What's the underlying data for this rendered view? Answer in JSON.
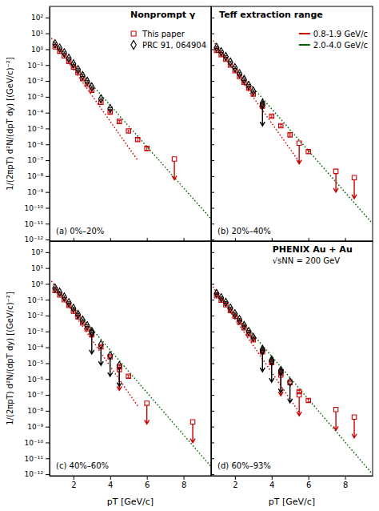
{
  "chart_data": [
    {
      "type": "scatter",
      "log": "y",
      "grid": false,
      "legend": "upper right",
      "tick_labels": "y",
      "xlim": [
        0.7,
        9.5
      ],
      "ylim": [
        8e-13,
        500.0
      ],
      "xticks": [
        2,
        4,
        6,
        8
      ],
      "yticks": [
        {
          "value": 1e-12,
          "label": "10⁻¹²"
        },
        {
          "value": 1e-11,
          "label": "10⁻¹¹"
        },
        {
          "value": 1e-10,
          "label": "10⁻¹⁰"
        },
        {
          "value": 1e-09,
          "label": "10⁻⁹"
        },
        {
          "value": 1e-08,
          "label": "10⁻⁸"
        },
        {
          "value": 1e-07,
          "label": "10⁻⁷"
        },
        {
          "value": 1e-06,
          "label": "10⁻⁶"
        },
        {
          "value": 1e-05,
          "label": "10⁻⁵"
        },
        {
          "value": 0.0001,
          "label": "10⁻⁴"
        },
        {
          "value": 0.001,
          "label": "10⁻³"
        },
        {
          "value": 0.01,
          "label": "10⁻²"
        },
        {
          "value": 0.1,
          "label": "10⁻¹"
        },
        {
          "value": 1,
          "label": "10⁰"
        },
        {
          "value": 10,
          "label": "10¹"
        },
        {
          "value": 100,
          "label": "10²"
        }
      ],
      "ylabel": "1/(2πpT) d²N/(dpT dy) [(GeV/c)⁻²]",
      "annotations": [
        "(a) 0%–20%",
        "Nonprompt γ"
      ],
      "series": [
        {
          "type": "line",
          "line_style": "dotted",
          "color": "#cc0000",
          "x": [
            0.8,
            5.5
          ],
          "values": [
            5.0,
            1e-07
          ]
        },
        {
          "type": "line",
          "line_style": "dotted",
          "color": "#006600",
          "x": [
            2.0,
            9.5
          ],
          "values": [
            0.12,
            2e-11
          ]
        },
        {
          "name": "This paper",
          "type": "scatter",
          "marker": "square",
          "color": "#cc0000",
          "x": [
            1.0,
            1.25,
            1.5,
            1.75,
            2.0,
            2.25,
            2.5,
            2.75,
            3.0,
            3.5,
            4.0,
            4.5,
            5.0,
            5.5,
            6.0
          ],
          "values": [
            1.4,
            0.75,
            0.38,
            0.17,
            0.075,
            0.033,
            0.014,
            0.006,
            0.0026,
            0.00045,
            0.00011,
            2.8e-05,
            7e-06,
            2e-06,
            5.5e-07
          ],
          "error_lo": [
            0.18,
            0.09,
            0.045,
            0.02,
            0.009,
            0.004,
            0.0018,
            0.0008,
            0.0004,
            6e-05,
            1.5e-05,
            4e-06,
            1.2e-06,
            4e-07,
            1.2e-07
          ],
          "error_hi": [
            0.18,
            0.09,
            0.045,
            0.02,
            0.009,
            0.004,
            0.0018,
            0.0008,
            0.0004,
            6e-05,
            1.5e-05,
            4e-06,
            1.2e-06,
            4e-07,
            1.2e-07
          ],
          "upper_limit_x": [
            7.5
          ],
          "upper_limits": [
            1.2e-07
          ]
        },
        {
          "name": "PRC 91, 064904",
          "type": "scatter",
          "marker": "diamond",
          "color": "black",
          "x": [
            1.0,
            1.25,
            1.5,
            1.75,
            2.0,
            2.25,
            2.5,
            2.75,
            3.0,
            3.5,
            4.0
          ],
          "values": [
            2.2,
            1.2,
            0.6,
            0.27,
            0.12,
            0.052,
            0.022,
            0.0095,
            0.0042,
            0.00075,
            0.00018
          ],
          "error": [
            0.3,
            0.15,
            0.075,
            0.033,
            0.015,
            0.007,
            0.003,
            0.0013,
            0.0006,
            0.00011,
            2.8e-05
          ]
        }
      ]
    },
    {
      "type": "scatter",
      "log": "y",
      "grid": false,
      "legend": "upper right",
      "tick_labels": false,
      "xlim": [
        0.7,
        9.5
      ],
      "ylim": [
        8e-13,
        500.0
      ],
      "xticks": [
        2,
        4,
        6,
        8
      ],
      "yticks": [
        {
          "value": 1e-12,
          "label": "10⁻¹²"
        },
        {
          "value": 1e-11,
          "label": "10⁻¹¹"
        },
        {
          "value": 1e-10,
          "label": "10⁻¹⁰"
        },
        {
          "value": 1e-09,
          "label": "10⁻⁹"
        },
        {
          "value": 1e-08,
          "label": "10⁻⁸"
        },
        {
          "value": 1e-07,
          "label": "10⁻⁷"
        },
        {
          "value": 1e-06,
          "label": "10⁻⁶"
        },
        {
          "value": 1e-05,
          "label": "10⁻⁵"
        },
        {
          "value": 0.0001,
          "label": "10⁻⁴"
        },
        {
          "value": 0.001,
          "label": "10⁻³"
        },
        {
          "value": 0.01,
          "label": "10⁻²"
        },
        {
          "value": 0.1,
          "label": "10⁻¹"
        },
        {
          "value": 1,
          "label": "10⁰"
        },
        {
          "value": 10,
          "label": "10¹"
        },
        {
          "value": 100,
          "label": "10²"
        }
      ],
      "annotations": [
        "(b) 20%–40%",
        "Teff extraction range"
      ],
      "series": [
        {
          "name": "0.8-1.9 GeV/c",
          "type": "line",
          "line_style": "dotted",
          "color": "#cc0000",
          "x": [
            0.8,
            5.5
          ],
          "values": [
            3.5,
            8e-08
          ]
        },
        {
          "name": "2.0-4.0 GeV/c",
          "type": "line",
          "line_style": "dotted",
          "color": "#006600",
          "x": [
            2.0,
            9.5
          ],
          "values": [
            0.075,
            1e-11
          ]
        },
        {
          "type": "scatter",
          "marker": "square",
          "color": "#cc0000",
          "x": [
            1.0,
            1.25,
            1.5,
            1.75,
            2.0,
            2.25,
            2.5,
            2.75,
            3.0,
            3.5,
            4.0,
            4.5,
            5.0,
            6.0
          ],
          "values": [
            0.85,
            0.46,
            0.23,
            0.1,
            0.044,
            0.019,
            0.0082,
            0.0035,
            0.0015,
            0.00026,
            6e-05,
            1.5e-05,
            4e-06,
            3.5e-07
          ],
          "error_lo": [
            0.11,
            0.06,
            0.03,
            0.013,
            0.006,
            0.0025,
            0.0011,
            0.0005,
            0.00022,
            4e-05,
            1e-05,
            2.5e-06,
            7e-07,
            8e-08
          ],
          "error_hi": [
            0.11,
            0.06,
            0.03,
            0.013,
            0.006,
            0.0025,
            0.0011,
            0.0005,
            0.00022,
            4e-05,
            1e-05,
            2.5e-06,
            7e-07,
            8e-08
          ],
          "upper_limit_x": [
            5.5,
            7.5,
            8.5
          ],
          "upper_limits": [
            1.2e-06,
            2e-08,
            8e-09
          ]
        },
        {
          "type": "scatter",
          "marker": "diamond",
          "color": "black",
          "x": [
            1.0,
            1.25,
            1.5,
            1.75,
            2.0,
            2.25,
            2.5,
            2.75,
            3.0,
            3.5
          ],
          "values": [
            1.3,
            0.7,
            0.35,
            0.155,
            0.068,
            0.029,
            0.0124,
            0.0053,
            0.0023,
            0.0004
          ],
          "error": [
            0.17,
            0.09,
            0.045,
            0.02,
            0.009,
            0.004,
            0.0017,
            0.0007,
            0.00035,
            6e-05
          ],
          "upper_limit_x": [
            3.5
          ],
          "upper_limits": [
            0.0003
          ]
        }
      ]
    },
    {
      "type": "scatter",
      "log": "y",
      "grid": false,
      "xlim": [
        0.7,
        9.5
      ],
      "ylim": [
        8e-13,
        500.0
      ],
      "xticks": [
        2,
        4,
        6,
        8
      ],
      "yticks": [
        {
          "value": 1e-12,
          "label": "10⁻¹²"
        },
        {
          "value": 1e-11,
          "label": "10⁻¹¹"
        },
        {
          "value": 1e-10,
          "label": "10⁻¹⁰"
        },
        {
          "value": 1e-09,
          "label": "10⁻⁹"
        },
        {
          "value": 1e-08,
          "label": "10⁻⁸"
        },
        {
          "value": 1e-07,
          "label": "10⁻⁷"
        },
        {
          "value": 1e-06,
          "label": "10⁻⁶"
        },
        {
          "value": 1e-05,
          "label": "10⁻⁵"
        },
        {
          "value": 0.0001,
          "label": "10⁻⁴"
        },
        {
          "value": 0.001,
          "label": "10⁻³"
        },
        {
          "value": 0.01,
          "label": "10⁻²"
        },
        {
          "value": 0.1,
          "label": "10⁻¹"
        },
        {
          "value": 1,
          "label": "10⁰"
        },
        {
          "value": 10,
          "label": "10¹"
        },
        {
          "value": 100,
          "label": "10²"
        }
      ],
      "xlabel": "pT [GeV/c]",
      "ylabel": "1/(2πpT) d²N/(dpT dy) [(GeV/c)⁻²]",
      "annotations": [
        "(c) 40%–60%"
      ],
      "series": [
        {
          "type": "line",
          "line_style": "dotted",
          "color": "#cc0000",
          "x": [
            0.8,
            5.5
          ],
          "values": [
            1.5,
            2e-08
          ]
        },
        {
          "type": "line",
          "line_style": "dotted",
          "color": "#006600",
          "x": [
            2.0,
            9.5
          ],
          "values": [
            0.032,
            3e-12
          ]
        },
        {
          "type": "scatter",
          "marker": "square",
          "color": "#cc0000",
          "x": [
            1.0,
            1.25,
            1.5,
            1.75,
            2.0,
            2.25,
            2.5,
            2.75,
            3.0,
            3.5,
            4.0,
            4.5,
            5.0
          ],
          "values": [
            0.38,
            0.2,
            0.1,
            0.045,
            0.019,
            0.0082,
            0.0034,
            0.0015,
            0.00062,
            0.00011,
            2.5e-05,
            6e-06,
            1.5e-06
          ],
          "error_lo": [
            0.05,
            0.026,
            0.013,
            0.006,
            0.0025,
            0.0011,
            0.0005,
            0.00022,
            0.0001,
            1.8e-05,
            4e-06,
            1.1e-06,
            3e-07
          ],
          "error_hi": [
            0.05,
            0.026,
            0.013,
            0.006,
            0.0025,
            0.0011,
            0.0005,
            0.00022,
            0.0001,
            1.8e-05,
            4e-06,
            1.1e-06,
            3e-07
          ],
          "upper_limit_x": [
            4.5,
            6.0,
            8.5
          ],
          "upper_limits": [
            4e-06,
            3e-08,
            2e-09
          ]
        },
        {
          "type": "scatter",
          "marker": "diamond",
          "color": "black",
          "x": [
            1.0,
            1.25,
            1.5,
            1.75,
            2.0,
            2.25,
            2.5,
            2.75,
            3.0
          ],
          "values": [
            0.55,
            0.3,
            0.15,
            0.066,
            0.029,
            0.012,
            0.0053,
            0.0023,
            0.001
          ],
          "error": [
            0.075,
            0.04,
            0.02,
            0.009,
            0.004,
            0.0016,
            0.0007,
            0.00033,
            0.00015
          ],
          "upper_limit_x": [
            3.0,
            3.5,
            4.0,
            4.5
          ],
          "upper_limits": [
            0.0008,
            0.00015,
            3e-05,
            7e-06
          ]
        }
      ]
    },
    {
      "type": "scatter",
      "log": "y",
      "grid": false,
      "tick_labels": "x",
      "xlim": [
        0.7,
        9.5
      ],
      "ylim": [
        8e-13,
        500.0
      ],
      "xticks": [
        2,
        4,
        6,
        8
      ],
      "yticks": [
        {
          "value": 1e-12,
          "label": "10⁻¹²"
        },
        {
          "value": 1e-11,
          "label": "10⁻¹¹"
        },
        {
          "value": 1e-10,
          "label": "10⁻¹⁰"
        },
        {
          "value": 1e-09,
          "label": "10⁻⁹"
        },
        {
          "value": 1e-08,
          "label": "10⁻⁸"
        },
        {
          "value": 1e-07,
          "label": "10⁻⁷"
        },
        {
          "value": 1e-06,
          "label": "10⁻⁶"
        },
        {
          "value": 1e-05,
          "label": "10⁻⁵"
        },
        {
          "value": 0.0001,
          "label": "10⁻⁴"
        },
        {
          "value": 0.001,
          "label": "10⁻³"
        },
        {
          "value": 0.01,
          "label": "10⁻²"
        },
        {
          "value": 0.1,
          "label": "10⁻¹"
        },
        {
          "value": 1,
          "label": "10⁰"
        },
        {
          "value": 10,
          "label": "10¹"
        },
        {
          "value": 100,
          "label": "10²"
        }
      ],
      "xlabel": "pT [GeV/c]",
      "annotations": [
        "(d) 60%–93%",
        "PHENIX Au + Au",
        "√sNN = 200 GeV"
      ],
      "series": [
        {
          "type": "line",
          "line_style": "dotted",
          "color": "#cc0000",
          "x": [
            0.8,
            5.5
          ],
          "values": [
            0.65,
            8e-09
          ]
        },
        {
          "type": "line",
          "line_style": "dotted",
          "color": "#006600",
          "x": [
            2.0,
            9.5
          ],
          "values": [
            0.014,
            1e-12
          ]
        },
        {
          "type": "scatter",
          "marker": "square",
          "color": "#cc0000",
          "x": [
            1.0,
            1.25,
            1.5,
            1.75,
            2.0,
            2.25,
            2.5,
            2.75,
            3.0,
            3.5,
            4.0,
            4.5,
            5.0,
            5.5,
            6.0
          ],
          "values": [
            0.18,
            0.096,
            0.048,
            0.021,
            0.0092,
            0.0039,
            0.0017,
            0.0007,
            0.0003,
            5.2e-05,
            1.1e-05,
            2.5e-06,
            6e-07,
            1.6e-07,
            4.5e-08
          ],
          "error_lo": [
            0.024,
            0.013,
            0.006,
            0.0028,
            0.0012,
            0.0005,
            0.00024,
            0.0001,
            4.5e-05,
            8e-06,
            1.8e-06,
            4.5e-07,
            1.1e-07,
            3.2e-08,
            1e-08
          ],
          "error_hi": [
            0.024,
            0.013,
            0.006,
            0.0028,
            0.0012,
            0.0005,
            0.00024,
            0.0001,
            4.5e-05,
            8e-06,
            1.8e-06,
            4.5e-07,
            1.1e-07,
            3.2e-08,
            1e-08
          ],
          "upper_limit_x": [
            4.5,
            5.5,
            7.5,
            8.5
          ],
          "upper_limits": [
            1.8e-06,
            1e-07,
            1.2e-08,
            4e-09
          ]
        },
        {
          "type": "scatter",
          "marker": "diamond",
          "color": "black",
          "x": [
            1.0,
            1.25,
            1.5,
            1.75,
            2.0,
            2.25,
            2.5,
            2.75,
            3.0,
            3.5,
            4.0,
            4.5
          ],
          "values": [
            0.25,
            0.135,
            0.068,
            0.03,
            0.013,
            0.0056,
            0.0024,
            0.001,
            0.00042,
            7.5e-05,
            1.6e-05,
            3.5e-06
          ],
          "error": [
            0.033,
            0.018,
            0.009,
            0.004,
            0.0018,
            0.0008,
            0.00033,
            0.00015,
            6e-05,
            1.1e-05,
            2.5e-06,
            6e-07
          ],
          "upper_limit_x": [
            3.5,
            4.0,
            4.5,
            5.0
          ],
          "upper_limits": [
            6e-05,
            1.3e-05,
            2.8e-06,
            6.5e-07
          ]
        }
      ]
    }
  ]
}
